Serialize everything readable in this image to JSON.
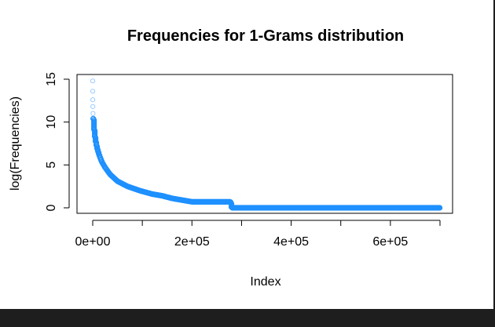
{
  "chart_data": {
    "type": "scatter",
    "title": "Frequencies for 1-Grams distribution",
    "xlabel": "Index",
    "ylabel": "log(Frequencies)",
    "xlim": [
      0,
      700000
    ],
    "ylim": [
      0,
      15
    ],
    "x_ticks": [
      0,
      100000,
      200000,
      300000,
      400000,
      500000,
      600000,
      700000
    ],
    "x_tick_labels": [
      {
        "value": 0,
        "label": "0e+00"
      },
      {
        "value": 200000,
        "label": "2e+05"
      },
      {
        "value": 400000,
        "label": "4e+05"
      },
      {
        "value": 600000,
        "label": "6e+05"
      }
    ],
    "y_ticks": [
      0,
      5,
      10,
      15
    ],
    "y_tick_labels": [
      "0",
      "5",
      "10",
      "15"
    ],
    "grid": false,
    "legend": "none",
    "marker": "open-circle",
    "point_color": "#1e90ff",
    "series": [
      {
        "x": [
          0,
          60,
          150,
          300,
          600,
          1000,
          2000,
          3500,
          5000,
          8000,
          12000,
          18000,
          25000,
          35000,
          50000,
          70000,
          95000,
          120000,
          140000,
          160000,
          200000,
          240000,
          278000,
          280000,
          350000,
          450000,
          550000,
          650000,
          700000
        ],
        "y": [
          14.8,
          13.6,
          12.6,
          11.8,
          11.0,
          10.4,
          9.5,
          8.6,
          8.0,
          7.1,
          6.3,
          5.4,
          4.7,
          3.9,
          3.1,
          2.5,
          2.0,
          1.6,
          1.4,
          1.1,
          0.7,
          0.7,
          0.7,
          0.0,
          0.0,
          0.0,
          0.0,
          0.0,
          0.0
        ]
      }
    ]
  }
}
